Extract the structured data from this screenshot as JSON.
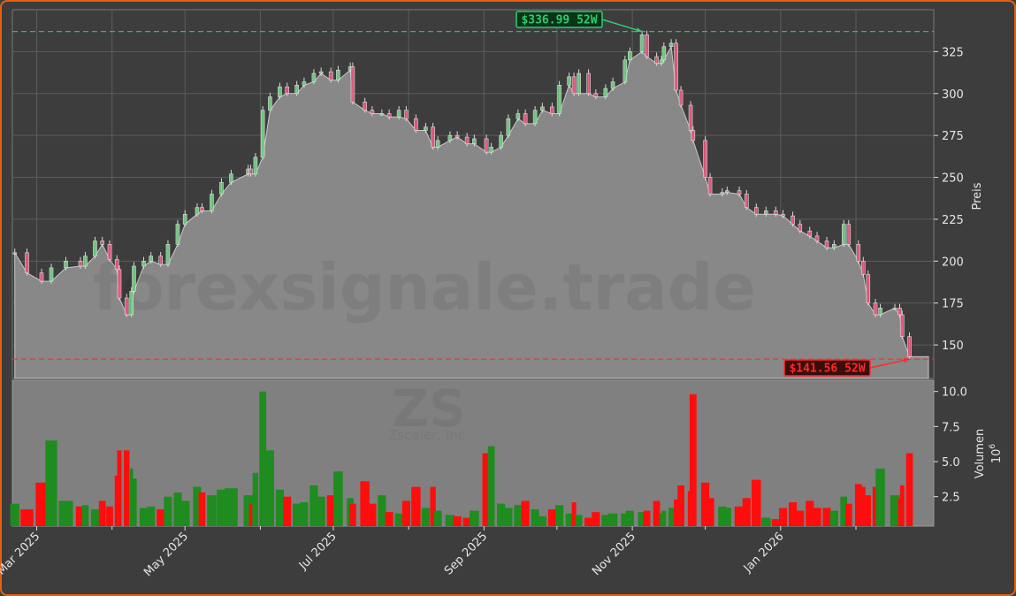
{
  "chart_data": [
    {
      "type": "candlestick",
      "ylabel": "Preis",
      "ylim": [
        130,
        350
      ],
      "xlim": [
        "2025-02-19",
        "2026-03-05"
      ],
      "yticks": [
        150,
        175,
        200,
        225,
        250,
        275,
        300,
        325
      ],
      "xticks": [
        {
          "date": "2025-03-01",
          "label": "Mar 2025"
        },
        {
          "date": "2025-05-01",
          "label": "May 2025"
        },
        {
          "date": "2025-07-01",
          "label": "Jul 2025"
        },
        {
          "date": "2025-09-01",
          "label": "Sep 2025"
        },
        {
          "date": "2025-11-01",
          "label": "Nov 2025"
        },
        {
          "date": "2026-01-01",
          "label": "Jan 2026"
        }
      ],
      "minor_xticks": [
        "2025-04-01",
        "2025-06-01",
        "2025-08-01",
        "2025-10-01",
        "2025-12-01",
        "2026-02-01"
      ],
      "grid": true,
      "high_52w": {
        "value": 336.99,
        "label": "$336.99 52W",
        "date": "2025-11-05",
        "color": "#2ecc71"
      },
      "low_52w": {
        "value": 141.56,
        "label": "$141.56 52W",
        "date": "2026-02-23",
        "color": "#ff2a2a"
      },
      "colors": {
        "up": "#6fd07f",
        "down": "#e8547a",
        "area": "#888888",
        "background": "#3d3d3d"
      },
      "fields": [
        "date",
        "close",
        "volume"
      ],
      "points": [
        [
          "2025-02-20",
          205,
          2.0
        ],
        [
          "2025-02-25",
          193,
          1.6
        ],
        [
          "2025-03-03",
          188,
          3.5
        ],
        [
          "2025-03-07",
          196,
          6.5
        ],
        [
          "2025-03-13",
          200,
          2.2
        ],
        [
          "2025-03-19",
          197,
          1.8
        ],
        [
          "2025-03-21",
          203,
          1.9
        ],
        [
          "2025-03-25",
          212,
          1.6
        ],
        [
          "2025-03-28",
          210,
          2.2
        ],
        [
          "2025-03-31",
          201,
          1.8
        ],
        [
          "2025-04-03",
          195,
          4.0
        ],
        [
          "2025-04-04",
          178,
          5.8
        ],
        [
          "2025-04-07",
          168,
          5.8
        ],
        [
          "2025-04-09",
          182,
          4.5
        ],
        [
          "2025-04-10",
          197,
          3.8
        ],
        [
          "2025-04-14",
          200,
          1.7
        ],
        [
          "2025-04-17",
          203,
          1.8
        ],
        [
          "2025-04-21",
          198,
          1.6
        ],
        [
          "2025-04-24",
          210,
          2.5
        ],
        [
          "2025-04-28",
          222,
          2.8
        ],
        [
          "2025-05-01",
          228,
          2.2
        ],
        [
          "2025-05-06",
          232,
          3.2
        ],
        [
          "2025-05-08",
          230,
          2.8
        ],
        [
          "2025-05-12",
          240,
          2.6
        ],
        [
          "2025-05-16",
          247,
          3.0
        ],
        [
          "2025-05-20",
          252,
          3.1
        ],
        [
          "2025-05-27",
          255,
          2.6
        ],
        [
          "2025-05-28",
          252,
          2.0
        ],
        [
          "2025-05-30",
          262,
          4.2
        ],
        [
          "2025-06-02",
          290,
          10.0
        ],
        [
          "2025-06-05",
          298,
          5.8
        ],
        [
          "2025-06-09",
          304,
          3.0
        ],
        [
          "2025-06-12",
          300,
          2.5
        ],
        [
          "2025-06-16",
          305,
          2.0
        ],
        [
          "2025-06-19",
          307,
          2.1
        ],
        [
          "2025-06-23",
          312,
          3.3
        ],
        [
          "2025-06-26",
          313,
          2.5
        ],
        [
          "2025-06-30",
          308,
          2.6
        ],
        [
          "2025-07-03",
          314,
          4.3
        ],
        [
          "2025-07-08",
          316,
          2.4
        ],
        [
          "2025-07-09",
          295,
          2.0
        ],
        [
          "2025-07-14",
          290,
          3.6
        ],
        [
          "2025-07-17",
          288,
          2.0
        ],
        [
          "2025-07-21",
          288,
          2.6
        ],
        [
          "2025-07-24",
          286,
          1.4
        ],
        [
          "2025-07-28",
          290,
          1.3
        ],
        [
          "2025-07-31",
          285,
          2.2
        ],
        [
          "2025-08-04",
          278,
          3.2
        ],
        [
          "2025-08-08",
          280,
          1.7
        ],
        [
          "2025-08-11",
          268,
          3.2
        ],
        [
          "2025-08-13",
          272,
          1.5
        ],
        [
          "2025-08-18",
          275,
          1.2
        ],
        [
          "2025-08-21",
          274,
          1.1
        ],
        [
          "2025-08-25",
          270,
          1.0
        ],
        [
          "2025-08-28",
          273,
          1.5
        ],
        [
          "2025-09-02",
          265,
          5.6
        ],
        [
          "2025-09-04",
          268,
          6.1
        ],
        [
          "2025-09-08",
          275,
          2.0
        ],
        [
          "2025-09-11",
          285,
          1.7
        ],
        [
          "2025-09-15",
          288,
          1.9
        ],
        [
          "2025-09-18",
          282,
          2.2
        ],
        [
          "2025-09-22",
          290,
          1.6
        ],
        [
          "2025-09-25",
          292,
          1.1
        ],
        [
          "2025-09-29",
          288,
          1.6
        ],
        [
          "2025-10-02",
          305,
          1.9
        ],
        [
          "2025-10-06",
          310,
          1.3
        ],
        [
          "2025-10-08",
          300,
          2.1
        ],
        [
          "2025-10-10",
          312,
          1.2
        ],
        [
          "2025-10-14",
          300,
          1.0
        ],
        [
          "2025-10-17",
          298,
          1.4
        ],
        [
          "2025-10-21",
          303,
          1.2
        ],
        [
          "2025-10-24",
          307,
          1.3
        ],
        [
          "2025-10-29",
          320,
          1.3
        ],
        [
          "2025-10-31",
          325,
          1.5
        ],
        [
          "2025-11-05",
          335,
          1.4
        ],
        [
          "2025-11-07",
          322,
          1.5
        ],
        [
          "2025-11-11",
          318,
          2.2
        ],
        [
          "2025-11-13",
          320,
          1.3
        ],
        [
          "2025-11-14",
          328,
          1.5
        ],
        [
          "2025-11-17",
          330,
          1.7
        ],
        [
          "2025-11-19",
          302,
          2.3
        ],
        [
          "2025-11-21",
          293,
          3.3
        ],
        [
          "2025-11-25",
          278,
          2.9
        ],
        [
          "2025-11-26",
          272,
          9.8
        ],
        [
          "2025-12-01",
          250,
          3.5
        ],
        [
          "2025-12-03",
          240,
          2.4
        ],
        [
          "2025-12-08",
          241,
          1.8
        ],
        [
          "2025-12-10",
          242,
          1.7
        ],
        [
          "2025-12-15",
          240,
          1.8
        ],
        [
          "2025-12-18",
          232,
          2.4
        ],
        [
          "2025-12-22",
          228,
          3.7
        ],
        [
          "2025-12-26",
          230,
          1.0
        ],
        [
          "2025-12-30",
          228,
          0.9
        ],
        [
          "2026-01-02",
          227,
          1.7
        ],
        [
          "2026-01-06",
          222,
          2.1
        ],
        [
          "2026-01-09",
          218,
          1.5
        ],
        [
          "2026-01-13",
          215,
          2.2
        ],
        [
          "2026-01-16",
          212,
          1.7
        ],
        [
          "2026-01-20",
          208,
          1.7
        ],
        [
          "2026-01-23",
          210,
          1.5
        ],
        [
          "2026-01-27",
          222,
          2.5
        ],
        [
          "2026-01-29",
          210,
          2.0
        ],
        [
          "2026-02-02",
          200,
          3.4
        ],
        [
          "2026-02-04",
          192,
          3.2
        ],
        [
          "2026-02-06",
          175,
          2.6
        ],
        [
          "2026-02-09",
          168,
          3.2
        ],
        [
          "2026-02-11",
          172,
          4.5
        ],
        [
          "2026-02-17",
          172,
          2.6
        ],
        [
          "2026-02-19",
          168,
          2.4
        ],
        [
          "2026-02-20",
          155,
          3.3
        ],
        [
          "2026-02-23",
          143,
          5.6
        ]
      ]
    },
    {
      "type": "bar",
      "ylabel": "Volumen",
      "yunit": "10",
      "yunit_exp": "6",
      "ylim": [
        0.4,
        10.8
      ],
      "yticks": [
        "2.5",
        "5.0",
        "7.5",
        "10.0"
      ],
      "colors": {
        "up": "#1e8c1e",
        "down": "#ff0d0d",
        "background": "#808080"
      }
    }
  ],
  "watermark": {
    "site": "forexsignale.trade",
    "ticker": "ZS",
    "company": "Zscaler, Inc."
  }
}
